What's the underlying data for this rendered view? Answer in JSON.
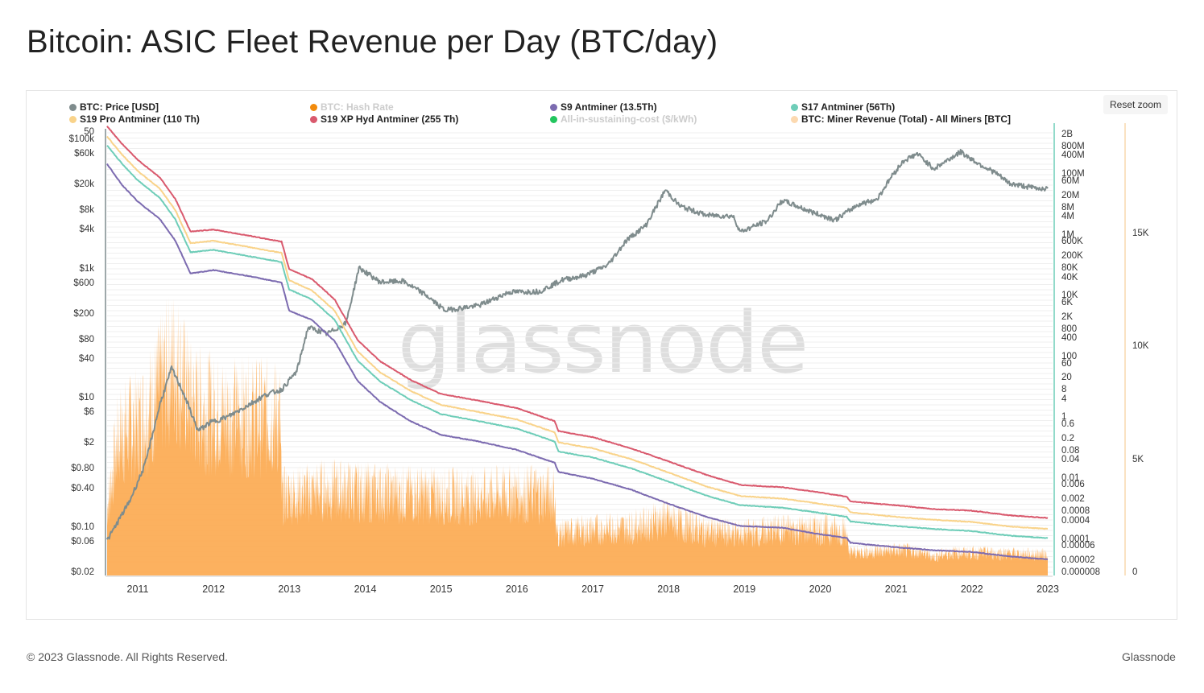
{
  "title": "Bitcoin: ASIC Fleet Revenue per Day (BTC/day)",
  "reset_zoom_label": "Reset zoom",
  "watermark": "glassnode",
  "footer": {
    "copyright": "© 2023 Glassnode. All Rights Reserved.",
    "brand": "Glassnode"
  },
  "legend": [
    {
      "label": "BTC: Price [USD]",
      "color": "#7f8c8d",
      "visible": true
    },
    {
      "label": "BTC: Hash Rate",
      "color": "#f28b0c",
      "visible": false
    },
    {
      "label": "S9 Antminer (13.5Th)",
      "color": "#7c6bb0",
      "visible": true
    },
    {
      "label": "S17 Antminer (56Th)",
      "color": "#6ecdb8",
      "visible": true
    },
    {
      "label": "S19 Pro Antminer (110 Th)",
      "color": "#f9d38a",
      "visible": true
    },
    {
      "label": "S19 XP Hyd Antminer (255 Th)",
      "color": "#d9596d",
      "visible": true
    },
    {
      "label": "All-in-sustaining-cost ($/kWh)",
      "color": "#22c55e",
      "visible": false
    },
    {
      "label": "BTC: Miner Revenue (Total) - All Miners [BTC]",
      "color": "#fcd9b0",
      "visible": true
    }
  ],
  "chart_data": {
    "type": "line",
    "x_ticks": [
      "2011",
      "2012",
      "2013",
      "2014",
      "2015",
      "2016",
      "2017",
      "2018",
      "2019",
      "2020",
      "2021",
      "2022",
      "2023"
    ],
    "y_left_ticks": [
      "50",
      "$100k",
      "$60k",
      "$20k",
      "$8k",
      "$4k",
      "$1k",
      "$600",
      "$200",
      "$80",
      "$40",
      "$10",
      "$6",
      "$2",
      "$0.80",
      "$0.40",
      "$0.10",
      "$0.06",
      "$0.02"
    ],
    "y_right_ticks": [
      "2B",
      "800M",
      "400M",
      "100M",
      "60M",
      "20M",
      "8M",
      "4M",
      "1M",
      "600K",
      "200K",
      "80K",
      "40K",
      "10K",
      "6K",
      "2K",
      "800",
      "400",
      "100",
      "60",
      "20",
      "8",
      "4",
      "1",
      "0.6",
      "0.2",
      "0.08",
      "0.04",
      "0.01",
      "0.006",
      "0.002",
      "0.0008",
      "0.0004",
      "0.0001",
      "0.00006",
      "0.00002",
      "0.000008"
    ],
    "y_right2_ticks": [
      "15K",
      "10K",
      "5K",
      "0"
    ],
    "y_left_scale": "log",
    "y_right_scale": "log",
    "y_right2_range": [
      0,
      15000
    ],
    "grid": true,
    "legend_position": "top",
    "series": [
      {
        "name": "BTC: Price [USD]",
        "axis": "left",
        "color": "#7f8c8d",
        "points": [
          [
            2010.6,
            0.06
          ],
          [
            2010.9,
            0.25
          ],
          [
            2011.1,
            0.9
          ],
          [
            2011.3,
            8
          ],
          [
            2011.45,
            28
          ],
          [
            2011.6,
            12
          ],
          [
            2011.8,
            3
          ],
          [
            2011.95,
            4
          ],
          [
            2012.2,
            5
          ],
          [
            2012.5,
            8
          ],
          [
            2012.7,
            11
          ],
          [
            2012.9,
            13
          ],
          [
            2013.1,
            25
          ],
          [
            2013.25,
            120
          ],
          [
            2013.5,
            95
          ],
          [
            2013.75,
            140
          ],
          [
            2013.92,
            1000
          ],
          [
            2014.2,
            600
          ],
          [
            2014.5,
            620
          ],
          [
            2014.8,
            380
          ],
          [
            2015.05,
            220
          ],
          [
            2015.5,
            260
          ],
          [
            2015.9,
            420
          ],
          [
            2016.3,
            430
          ],
          [
            2016.6,
            650
          ],
          [
            2016.9,
            760
          ],
          [
            2017.2,
            1100
          ],
          [
            2017.45,
            2700
          ],
          [
            2017.7,
            4500
          ],
          [
            2017.96,
            16000
          ],
          [
            2018.15,
            9000
          ],
          [
            2018.5,
            6500
          ],
          [
            2018.85,
            6300
          ],
          [
            2018.95,
            3600
          ],
          [
            2019.3,
            5300
          ],
          [
            2019.5,
            11000
          ],
          [
            2019.9,
            7200
          ],
          [
            2020.2,
            5500
          ],
          [
            2020.5,
            9500
          ],
          [
            2020.75,
            11500
          ],
          [
            2020.95,
            27000
          ],
          [
            2021.1,
            45000
          ],
          [
            2021.28,
            58000
          ],
          [
            2021.5,
            34000
          ],
          [
            2021.85,
            62000
          ],
          [
            2022.1,
            40000
          ],
          [
            2022.3,
            30000
          ],
          [
            2022.5,
            20000
          ],
          [
            2022.85,
            17000
          ],
          [
            2023.0,
            16800
          ]
        ]
      },
      {
        "name": "S9 Antminer (13.5Th)",
        "axis": "right",
        "color": "#7c6bb0",
        "points": [
          [
            2010.6,
            200000000
          ],
          [
            2010.8,
            40000000
          ],
          [
            2011.0,
            12000000
          ],
          [
            2011.3,
            3000000
          ],
          [
            2011.5,
            600000
          ],
          [
            2011.7,
            50000
          ],
          [
            2012.0,
            65000
          ],
          [
            2012.5,
            40000
          ],
          [
            2012.9,
            25000
          ],
          [
            2013.0,
            3000
          ],
          [
            2013.3,
            1500
          ],
          [
            2013.6,
            300
          ],
          [
            2013.9,
            15
          ],
          [
            2014.2,
            3
          ],
          [
            2014.6,
            0.7
          ],
          [
            2015.0,
            0.25
          ],
          [
            2015.5,
            0.15
          ],
          [
            2016.0,
            0.08
          ],
          [
            2016.5,
            0.03
          ],
          [
            2016.55,
            0.015
          ],
          [
            2017.0,
            0.009
          ],
          [
            2017.5,
            0.004
          ],
          [
            2017.95,
            0.0015
          ],
          [
            2018.5,
            0.0005
          ],
          [
            2018.95,
            0.00025
          ],
          [
            2019.5,
            0.00022
          ],
          [
            2019.95,
            0.00014
          ],
          [
            2020.35,
            0.0001
          ],
          [
            2020.4,
            7e-05
          ],
          [
            2021.0,
            5e-05
          ],
          [
            2021.5,
            4e-05
          ],
          [
            2022.0,
            3.5e-05
          ],
          [
            2022.5,
            2.5e-05
          ],
          [
            2023.0,
            2e-05
          ]
        ]
      },
      {
        "name": "S17 Antminer (56Th)",
        "axis": "right",
        "color": "#6ecdb8",
        "points": [
          [
            2010.6,
            800000000
          ],
          [
            2010.8,
            200000000
          ],
          [
            2011.0,
            60000000
          ],
          [
            2011.3,
            15000000
          ],
          [
            2011.5,
            3000000
          ],
          [
            2011.7,
            250000
          ],
          [
            2012.0,
            300000
          ],
          [
            2012.5,
            180000
          ],
          [
            2012.9,
            120000
          ],
          [
            2013.0,
            15000
          ],
          [
            2013.3,
            7000
          ],
          [
            2013.6,
            1500
          ],
          [
            2013.9,
            70
          ],
          [
            2014.2,
            14
          ],
          [
            2014.6,
            3.5
          ],
          [
            2015.0,
            1.2
          ],
          [
            2015.5,
            0.7
          ],
          [
            2016.0,
            0.4
          ],
          [
            2016.5,
            0.15
          ],
          [
            2016.55,
            0.07
          ],
          [
            2017.0,
            0.045
          ],
          [
            2017.5,
            0.02
          ],
          [
            2017.95,
            0.008
          ],
          [
            2018.5,
            0.0025
          ],
          [
            2018.95,
            0.0012
          ],
          [
            2019.5,
            0.001
          ],
          [
            2019.95,
            0.0007
          ],
          [
            2020.35,
            0.0005
          ],
          [
            2020.4,
            0.00035
          ],
          [
            2021.0,
            0.00025
          ],
          [
            2021.5,
            0.0002
          ],
          [
            2022.0,
            0.00017
          ],
          [
            2022.5,
            0.00012
          ],
          [
            2023.0,
            0.0001
          ]
        ]
      },
      {
        "name": "S19 Pro Antminer (110 Th)",
        "axis": "right",
        "color": "#f9d38a",
        "points": [
          [
            2010.6,
            1600000000
          ],
          [
            2010.8,
            400000000
          ],
          [
            2011.0,
            120000000
          ],
          [
            2011.3,
            30000000
          ],
          [
            2011.5,
            6000000
          ],
          [
            2011.7,
            500000
          ],
          [
            2012.0,
            600000
          ],
          [
            2012.5,
            360000
          ],
          [
            2012.9,
            240000
          ],
          [
            2013.0,
            30000
          ],
          [
            2013.3,
            14000
          ],
          [
            2013.6,
            3000
          ],
          [
            2013.9,
            140
          ],
          [
            2014.2,
            28
          ],
          [
            2014.6,
            7
          ],
          [
            2015.0,
            2.4
          ],
          [
            2015.5,
            1.4
          ],
          [
            2016.0,
            0.8
          ],
          [
            2016.5,
            0.3
          ],
          [
            2016.55,
            0.14
          ],
          [
            2017.0,
            0.09
          ],
          [
            2017.5,
            0.04
          ],
          [
            2017.95,
            0.016
          ],
          [
            2018.5,
            0.005
          ],
          [
            2018.95,
            0.0024
          ],
          [
            2019.5,
            0.002
          ],
          [
            2019.95,
            0.0014
          ],
          [
            2020.35,
            0.001
          ],
          [
            2020.4,
            0.0007
          ],
          [
            2021.0,
            0.0005
          ],
          [
            2021.5,
            0.0004
          ],
          [
            2022.0,
            0.00034
          ],
          [
            2022.5,
            0.00024
          ],
          [
            2023.0,
            0.0002
          ]
        ]
      },
      {
        "name": "S19 XP Hyd Antminer (255 Th)",
        "axis": "right",
        "color": "#d9596d",
        "points": [
          [
            2010.6,
            3500000000
          ],
          [
            2010.8,
            900000000
          ],
          [
            2011.0,
            280000000
          ],
          [
            2011.3,
            70000000
          ],
          [
            2011.5,
            14000000
          ],
          [
            2011.7,
            1200000
          ],
          [
            2012.0,
            1400000
          ],
          [
            2012.5,
            850000
          ],
          [
            2012.9,
            560000
          ],
          [
            2013.0,
            70000
          ],
          [
            2013.3,
            33000
          ],
          [
            2013.6,
            7000
          ],
          [
            2013.9,
            330
          ],
          [
            2014.2,
            65
          ],
          [
            2014.6,
            16
          ],
          [
            2015.0,
            5.5
          ],
          [
            2015.5,
            3.3
          ],
          [
            2016.0,
            1.9
          ],
          [
            2016.5,
            0.7
          ],
          [
            2016.55,
            0.33
          ],
          [
            2017.0,
            0.21
          ],
          [
            2017.5,
            0.09
          ],
          [
            2017.95,
            0.037
          ],
          [
            2018.5,
            0.012
          ],
          [
            2018.95,
            0.0056
          ],
          [
            2019.5,
            0.0047
          ],
          [
            2019.95,
            0.0033
          ],
          [
            2020.35,
            0.0023
          ],
          [
            2020.4,
            0.0016
          ],
          [
            2021.0,
            0.0012
          ],
          [
            2021.5,
            0.0009
          ],
          [
            2022.0,
            0.0008
          ],
          [
            2022.5,
            0.00056
          ],
          [
            2023.0,
            0.00046
          ]
        ]
      },
      {
        "name": "BTC: Miner Revenue (Total) - All Miners [BTC]",
        "axis": "right2",
        "color": "#fca94e",
        "points": [
          [
            2010.6,
            3000
          ],
          [
            2010.75,
            6500
          ],
          [
            2011.0,
            7000
          ],
          [
            2011.2,
            8000
          ],
          [
            2011.4,
            9500
          ],
          [
            2011.5,
            10000
          ],
          [
            2011.7,
            8000
          ],
          [
            2012.0,
            7500
          ],
          [
            2012.5,
            7400
          ],
          [
            2012.88,
            7300
          ],
          [
            2012.9,
            3600
          ],
          [
            2013.5,
            3900
          ],
          [
            2014.0,
            3800
          ],
          [
            2014.5,
            3700
          ],
          [
            2015.0,
            3600
          ],
          [
            2015.5,
            3600
          ],
          [
            2016.0,
            3700
          ],
          [
            2016.5,
            3700
          ],
          [
            2016.52,
            1800
          ],
          [
            2017.0,
            2000
          ],
          [
            2017.5,
            2100
          ],
          [
            2017.95,
            2500
          ],
          [
            2018.5,
            1900
          ],
          [
            2019.0,
            1800
          ],
          [
            2019.5,
            2000
          ],
          [
            2020.0,
            2000
          ],
          [
            2020.35,
            1900
          ],
          [
            2020.37,
            900
          ],
          [
            2021.0,
            1000
          ],
          [
            2021.3,
            950
          ],
          [
            2021.5,
            700
          ],
          [
            2021.7,
            900
          ],
          [
            2022.0,
            900
          ],
          [
            2022.5,
            850
          ],
          [
            2023.0,
            800
          ]
        ]
      }
    ]
  }
}
